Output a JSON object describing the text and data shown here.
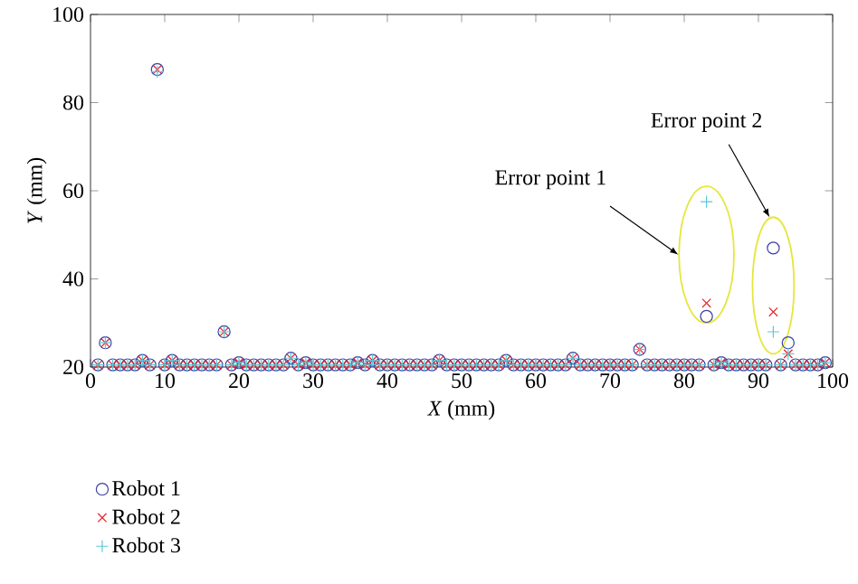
{
  "chart_data": {
    "type": "scatter",
    "xlabel": "*X* (mm)",
    "ylabel": "*Y* (mm)",
    "xlim": [
      0,
      100
    ],
    "ylim": [
      20,
      100
    ],
    "xticks": [
      0,
      10,
      20,
      30,
      40,
      50,
      60,
      70,
      80,
      90,
      100
    ],
    "yticks": [
      20,
      40,
      60,
      80,
      100
    ],
    "legend": "bottom left",
    "grid": false,
    "x": [
      1,
      2,
      3,
      4,
      5,
      6,
      7,
      8,
      9,
      10,
      11,
      12,
      13,
      14,
      15,
      16,
      17,
      18,
      19,
      20,
      21,
      22,
      23,
      24,
      25,
      26,
      27,
      28,
      29,
      30,
      31,
      32,
      33,
      34,
      35,
      36,
      37,
      38,
      39,
      40,
      41,
      42,
      43,
      44,
      45,
      46,
      47,
      48,
      49,
      50,
      51,
      52,
      53,
      54,
      55,
      56,
      57,
      58,
      59,
      60,
      61,
      62,
      63,
      64,
      65,
      66,
      67,
      68,
      69,
      70,
      71,
      72,
      73,
      74,
      75,
      76,
      77,
      78,
      79,
      80,
      81,
      82,
      83,
      84,
      85,
      86,
      87,
      88,
      89,
      90,
      91,
      92,
      93,
      94,
      95,
      96,
      97,
      98,
      99
    ],
    "series": [
      {
        "name": "Robot 1",
        "color": "#3a40a0",
        "marker": "circle",
        "values": [
          20.5,
          25.5,
          20.5,
          20.5,
          20.5,
          20.5,
          21.5,
          20.5,
          87.5,
          20.5,
          21.5,
          20.5,
          20.5,
          20.5,
          20.5,
          20.5,
          20.5,
          28,
          20.5,
          21,
          20.5,
          20.5,
          20.5,
          20.5,
          20.5,
          20.5,
          22,
          20.5,
          21,
          20.5,
          20.5,
          20.5,
          20.5,
          20.5,
          20.5,
          21,
          20.5,
          21.5,
          20.5,
          20.5,
          20.5,
          20.5,
          20.5,
          20.5,
          20.5,
          20.5,
          21.5,
          20.5,
          20.5,
          20.5,
          20.5,
          20.5,
          20.5,
          20.5,
          20.5,
          21.5,
          20.5,
          20.5,
          20.5,
          20.5,
          20.5,
          20.5,
          20.5,
          20.5,
          22,
          20.5,
          20.5,
          20.5,
          20.5,
          20.5,
          20.5,
          20.5,
          20.5,
          24,
          20.5,
          20.5,
          20.5,
          20.5,
          20.5,
          20.5,
          20.5,
          20.5,
          31.5,
          20.5,
          21,
          20.5,
          20.5,
          20.5,
          20.5,
          20.5,
          20.5,
          47,
          20.5,
          25.5,
          20.5,
          20.5,
          20.5,
          20.5,
          21
        ]
      },
      {
        "name": "Robot 2",
        "color": "#e8202a",
        "marker": "cross",
        "values": [
          20.5,
          25.5,
          20.5,
          20.5,
          20.5,
          20.5,
          21.5,
          20.5,
          87.5,
          20.5,
          21.5,
          20.5,
          20.5,
          20.5,
          20.5,
          20.5,
          20.5,
          28,
          20.5,
          21,
          20.5,
          20.5,
          20.5,
          20.5,
          20.5,
          20.5,
          22,
          20.5,
          21,
          20.5,
          20.5,
          20.5,
          20.5,
          20.5,
          20.5,
          21,
          20.5,
          21.5,
          20.5,
          20.5,
          20.5,
          20.5,
          20.5,
          20.5,
          20.5,
          20.5,
          21.5,
          20.5,
          20.5,
          20.5,
          20.5,
          20.5,
          20.5,
          20.5,
          20.5,
          21.5,
          20.5,
          20.5,
          20.5,
          20.5,
          20.5,
          20.5,
          20.5,
          20.5,
          22,
          20.5,
          20.5,
          20.5,
          20.5,
          20.5,
          20.5,
          20.5,
          20.5,
          24,
          20.5,
          20.5,
          20.5,
          20.5,
          20.5,
          20.5,
          20.5,
          20.5,
          34.5,
          20.5,
          21,
          20.5,
          20.5,
          20.5,
          20.5,
          20.5,
          20.5,
          32.5,
          20.5,
          23,
          20.5,
          20.5,
          20.5,
          20.5,
          21
        ]
      },
      {
        "name": "Robot 3",
        "color": "#5cc8d8",
        "marker": "plus",
        "values": [
          20.5,
          25.5,
          20.5,
          20.5,
          20.5,
          20.5,
          21.5,
          20.5,
          87,
          20.5,
          21.5,
          20.5,
          20.5,
          20.5,
          20.5,
          20.5,
          20.5,
          28,
          20.5,
          21,
          20.5,
          20.5,
          20.5,
          20.5,
          20.5,
          20.5,
          22,
          20.5,
          21,
          20.5,
          20.5,
          20.5,
          20.5,
          20.5,
          20.5,
          21,
          20.5,
          21.5,
          20.5,
          20.5,
          20.5,
          20.5,
          20.5,
          20.5,
          20.5,
          20.5,
          21.5,
          20.5,
          20.5,
          20.5,
          20.5,
          20.5,
          20.5,
          20.5,
          20.5,
          21.5,
          20.5,
          20.5,
          20.5,
          20.5,
          20.5,
          20.5,
          20.5,
          20.5,
          22,
          20.5,
          20.5,
          20.5,
          20.5,
          20.5,
          20.5,
          20.5,
          20.5,
          24,
          20.5,
          20.5,
          20.5,
          20.5,
          20.5,
          20.5,
          20.5,
          20.5,
          57.5,
          20.5,
          21,
          20.5,
          20.5,
          20.5,
          20.5,
          20.5,
          20.5,
          28,
          20.5,
          23,
          20.5,
          20.5,
          20.5,
          20.5,
          21
        ]
      }
    ],
    "annotations": [
      "Error point 1",
      "Error point 2"
    ]
  }
}
